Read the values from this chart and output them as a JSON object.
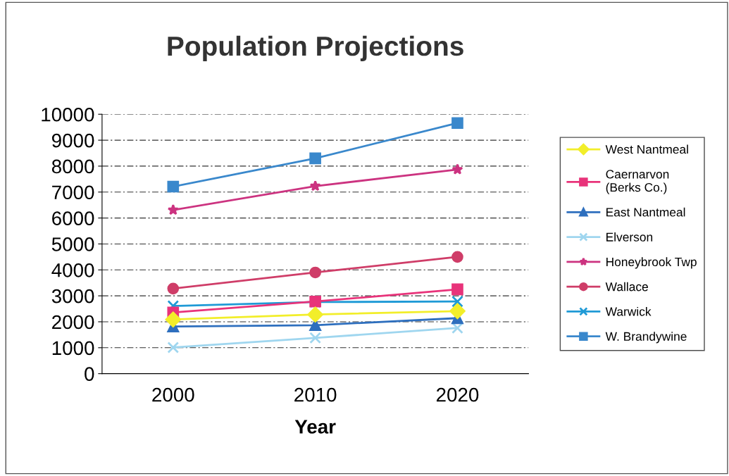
{
  "chart_data": {
    "type": "line",
    "title": "Population Projections",
    "xlabel": "Year",
    "categories": [
      "2000",
      "2010",
      "2020"
    ],
    "ylim": [
      0,
      10000
    ],
    "yticks": [
      0,
      1000,
      2000,
      3000,
      4000,
      5000,
      6000,
      7000,
      8000,
      9000,
      10000
    ],
    "grid": "y",
    "legend": "right",
    "series": [
      {
        "name": "West Nantmeal",
        "color": "#f2ee2a",
        "marker": "diamond",
        "values": [
          2090,
          2280,
          2410
        ]
      },
      {
        "name": "Caernarvon\n(Berks Co.)",
        "color": "#e8337a",
        "marker": "square",
        "values": [
          2360,
          2780,
          3250
        ]
      },
      {
        "name": "East Nantmeal",
        "color": "#2e6fbe",
        "marker": "triangle",
        "values": [
          1820,
          1870,
          2140
        ]
      },
      {
        "name": "Elverson",
        "color": "#9fd6ef",
        "marker": "cross",
        "values": [
          1010,
          1380,
          1760
        ]
      },
      {
        "name": "Honeybrook Twp",
        "color": "#cc3380",
        "marker": "star",
        "values": [
          6310,
          7230,
          7870
        ]
      },
      {
        "name": "Wallace",
        "color": "#cf3d68",
        "marker": "circle",
        "values": [
          3280,
          3900,
          4500
        ]
      },
      {
        "name": "Warwick",
        "color": "#1f9ad6",
        "marker": "cross",
        "values": [
          2610,
          2760,
          2780
        ]
      },
      {
        "name": "W. Brandywine",
        "color": "#3a88cc",
        "marker": "square",
        "values": [
          7210,
          8300,
          9660
        ]
      }
    ]
  }
}
